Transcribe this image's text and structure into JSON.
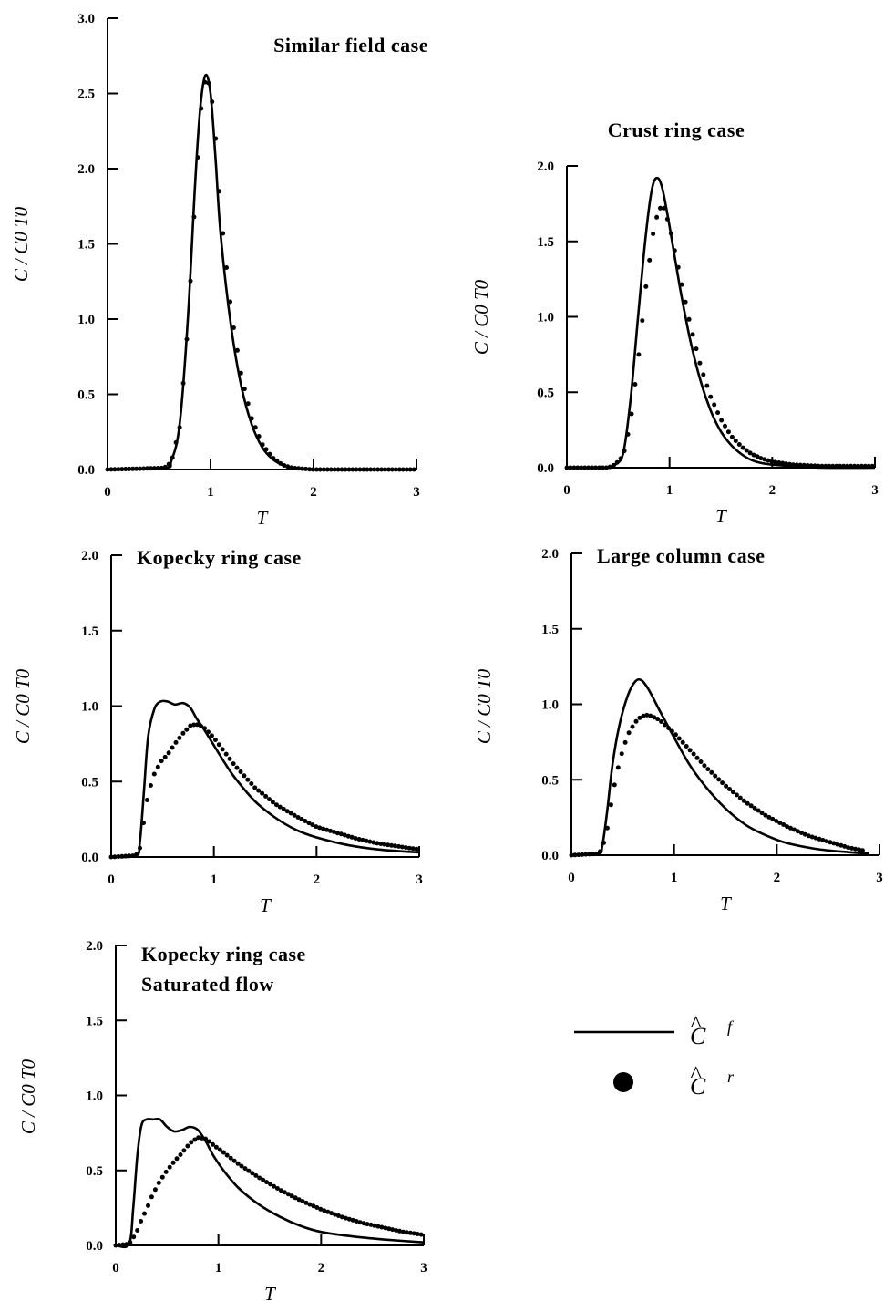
{
  "legend": {
    "entries": [
      {
        "symbol": "line",
        "label": "C",
        "hat": "^",
        "sup": "f"
      },
      {
        "symbol": "dot",
        "label": "C",
        "hat": "^",
        "sup": "r"
      }
    ]
  },
  "colors": {
    "ink": "#000000",
    "background": "#ffffff"
  },
  "chart_data": [
    {
      "type": "line",
      "title_lines": [
        "Similar field case"
      ],
      "xlabel": "T",
      "ylabel": "C / C0 T0",
      "xlim": [
        0,
        3
      ],
      "ylim": [
        0,
        3
      ],
      "xticks": [
        0,
        1,
        2,
        3
      ],
      "yticks": [
        0.0,
        0.5,
        1.0,
        1.5,
        2.0,
        2.5,
        3.0
      ],
      "grid": false,
      "series": [
        {
          "key": "Cf",
          "style": "line",
          "x": [
            0,
            0.55,
            0.62,
            0.7,
            0.78,
            0.85,
            0.9,
            0.95,
            1.0,
            1.05,
            1.1,
            1.2,
            1.3,
            1.4,
            1.5,
            1.6,
            1.7,
            1.8,
            2.0,
            2.5,
            3.0
          ],
          "y": [
            0,
            0.01,
            0.06,
            0.3,
            1.0,
            1.9,
            2.4,
            2.62,
            2.5,
            2.05,
            1.55,
            0.95,
            0.55,
            0.3,
            0.15,
            0.07,
            0.03,
            0.01,
            0.0,
            0.0,
            0.0
          ]
        },
        {
          "key": "Cr",
          "style": "dots",
          "x": [
            0,
            0.55,
            0.62,
            0.7,
            0.78,
            0.85,
            0.9,
            0.95,
            1.0,
            1.05,
            1.1,
            1.2,
            1.3,
            1.4,
            1.5,
            1.6,
            1.7,
            1.8,
            2.0,
            2.5,
            3.0
          ],
          "y": [
            0,
            0.01,
            0.05,
            0.28,
            0.95,
            1.8,
            2.35,
            2.6,
            2.55,
            2.2,
            1.7,
            1.05,
            0.62,
            0.34,
            0.17,
            0.08,
            0.03,
            0.01,
            0.0,
            0.0,
            0.0
          ]
        }
      ]
    },
    {
      "type": "line",
      "title_lines": [
        "Crust ring case"
      ],
      "xlabel": "T",
      "ylabel": "C / C0 T0",
      "xlim": [
        0,
        3
      ],
      "ylim": [
        0,
        2
      ],
      "xticks": [
        0,
        1,
        2,
        3
      ],
      "yticks": [
        0.0,
        0.5,
        1.0,
        1.5,
        2.0
      ],
      "grid": false,
      "series": [
        {
          "key": "Cf",
          "style": "line",
          "x": [
            0,
            0.4,
            0.47,
            0.55,
            0.62,
            0.7,
            0.77,
            0.83,
            0.88,
            0.93,
            1.0,
            1.1,
            1.2,
            1.3,
            1.4,
            1.5,
            1.6,
            1.7,
            1.8,
            1.9,
            2.0,
            2.2,
            2.5,
            3.0
          ],
          "y": [
            0,
            0.0,
            0.02,
            0.1,
            0.45,
            1.05,
            1.55,
            1.85,
            1.92,
            1.85,
            1.6,
            1.2,
            0.85,
            0.58,
            0.38,
            0.24,
            0.15,
            0.09,
            0.05,
            0.03,
            0.02,
            0.01,
            0.0,
            0.0
          ]
        },
        {
          "key": "Cr",
          "style": "dots",
          "x": [
            0,
            0.4,
            0.47,
            0.55,
            0.62,
            0.7,
            0.77,
            0.85,
            0.9,
            0.95,
            1.0,
            1.1,
            1.2,
            1.3,
            1.4,
            1.5,
            1.6,
            1.7,
            1.8,
            1.9,
            2.0,
            2.2,
            2.5,
            2.8,
            3.0
          ],
          "y": [
            0,
            0.0,
            0.02,
            0.08,
            0.3,
            0.75,
            1.2,
            1.6,
            1.72,
            1.72,
            1.6,
            1.28,
            0.95,
            0.68,
            0.47,
            0.32,
            0.21,
            0.14,
            0.09,
            0.06,
            0.04,
            0.02,
            0.01,
            0.01,
            0.01
          ]
        }
      ]
    },
    {
      "type": "line",
      "title_lines": [
        "Kopecky ring case"
      ],
      "xlabel": "T",
      "ylabel": "C / C0 T0",
      "xlim": [
        0,
        3
      ],
      "ylim": [
        0,
        2
      ],
      "xticks": [
        0,
        1,
        2,
        3
      ],
      "yticks": [
        0.0,
        0.5,
        1.0,
        1.5,
        2.0
      ],
      "grid": false,
      "series": [
        {
          "key": "Cf",
          "style": "line",
          "x": [
            0,
            0.24,
            0.28,
            0.32,
            0.36,
            0.42,
            0.48,
            0.55,
            0.62,
            0.7,
            0.77,
            0.83,
            0.9,
            1.0,
            1.1,
            1.2,
            1.4,
            1.6,
            1.8,
            2.0,
            2.3,
            2.6,
            3.0
          ],
          "y": [
            0,
            0.01,
            0.1,
            0.45,
            0.8,
            0.98,
            1.03,
            1.03,
            1.01,
            1.02,
            0.99,
            0.92,
            0.85,
            0.74,
            0.63,
            0.53,
            0.37,
            0.26,
            0.18,
            0.13,
            0.08,
            0.05,
            0.03
          ]
        },
        {
          "key": "Cr",
          "style": "dots",
          "x": [
            0,
            0.24,
            0.28,
            0.32,
            0.36,
            0.42,
            0.48,
            0.55,
            0.62,
            0.7,
            0.77,
            0.83,
            0.9,
            1.0,
            1.1,
            1.2,
            1.4,
            1.6,
            1.8,
            2.0,
            2.2,
            2.4,
            2.6,
            2.8,
            3.0
          ],
          "y": [
            0,
            0.01,
            0.06,
            0.25,
            0.42,
            0.55,
            0.63,
            0.68,
            0.75,
            0.82,
            0.87,
            0.88,
            0.86,
            0.79,
            0.7,
            0.61,
            0.46,
            0.35,
            0.27,
            0.2,
            0.16,
            0.12,
            0.09,
            0.07,
            0.05
          ]
        }
      ]
    },
    {
      "type": "line",
      "title_lines": [
        "Large column case"
      ],
      "xlabel": "T",
      "ylabel": "C / C0 T0",
      "xlim": [
        0,
        3
      ],
      "ylim": [
        0,
        2
      ],
      "xticks": [
        0,
        1,
        2,
        3
      ],
      "yticks": [
        0.0,
        0.5,
        1.0,
        1.5,
        2.0
      ],
      "grid": false,
      "series": [
        {
          "key": "Cf",
          "style": "line",
          "x": [
            0,
            0.26,
            0.3,
            0.35,
            0.4,
            0.47,
            0.55,
            0.62,
            0.68,
            0.75,
            0.85,
            1.0,
            1.15,
            1.3,
            1.5,
            1.7,
            1.9,
            2.1,
            2.4,
            2.7,
            2.9
          ],
          "y": [
            0,
            0.01,
            0.06,
            0.3,
            0.6,
            0.87,
            1.06,
            1.15,
            1.16,
            1.1,
            0.97,
            0.78,
            0.6,
            0.46,
            0.31,
            0.2,
            0.13,
            0.08,
            0.04,
            0.02,
            0.01
          ]
        },
        {
          "key": "Cr",
          "style": "dots",
          "x": [
            0,
            0.26,
            0.3,
            0.35,
            0.4,
            0.47,
            0.55,
            0.62,
            0.68,
            0.75,
            0.85,
            1.0,
            1.15,
            1.3,
            1.5,
            1.7,
            1.9,
            2.1,
            2.3,
            2.5,
            2.7,
            2.85
          ],
          "y": [
            0,
            0.01,
            0.04,
            0.18,
            0.4,
            0.63,
            0.8,
            0.88,
            0.92,
            0.93,
            0.9,
            0.81,
            0.7,
            0.59,
            0.46,
            0.35,
            0.26,
            0.19,
            0.13,
            0.09,
            0.05,
            0.03
          ]
        }
      ]
    },
    {
      "type": "line",
      "title_lines": [
        "Kopecky ring case",
        "Saturated flow"
      ],
      "xlabel": "T",
      "ylabel": "C / C0 T0",
      "xlim": [
        0,
        3
      ],
      "ylim": [
        0,
        2
      ],
      "xticks": [
        0,
        1,
        2,
        3
      ],
      "yticks": [
        0.0,
        0.5,
        1.0,
        1.5,
        2.0
      ],
      "grid": false,
      "series": [
        {
          "key": "Cf",
          "style": "line",
          "x": [
            0,
            0.13,
            0.17,
            0.21,
            0.25,
            0.3,
            0.36,
            0.43,
            0.5,
            0.57,
            0.65,
            0.72,
            0.8,
            0.88,
            0.95,
            1.05,
            1.2,
            1.4,
            1.6,
            1.8,
            2.0,
            2.3,
            2.6,
            3.0
          ],
          "y": [
            0,
            0.01,
            0.25,
            0.6,
            0.8,
            0.84,
            0.84,
            0.84,
            0.79,
            0.76,
            0.77,
            0.79,
            0.77,
            0.69,
            0.6,
            0.5,
            0.38,
            0.27,
            0.19,
            0.13,
            0.09,
            0.06,
            0.04,
            0.02
          ]
        },
        {
          "key": "Cr",
          "style": "dots",
          "x": [
            0,
            0.13,
            0.17,
            0.21,
            0.25,
            0.3,
            0.36,
            0.43,
            0.5,
            0.57,
            0.65,
            0.72,
            0.8,
            0.88,
            0.95,
            1.05,
            1.2,
            1.4,
            1.6,
            1.8,
            2.0,
            2.2,
            2.4,
            2.6,
            2.8,
            3.0
          ],
          "y": [
            0,
            0.01,
            0.05,
            0.1,
            0.17,
            0.24,
            0.34,
            0.43,
            0.5,
            0.56,
            0.62,
            0.68,
            0.72,
            0.71,
            0.67,
            0.62,
            0.54,
            0.45,
            0.37,
            0.3,
            0.24,
            0.19,
            0.15,
            0.12,
            0.09,
            0.07
          ]
        }
      ]
    }
  ]
}
